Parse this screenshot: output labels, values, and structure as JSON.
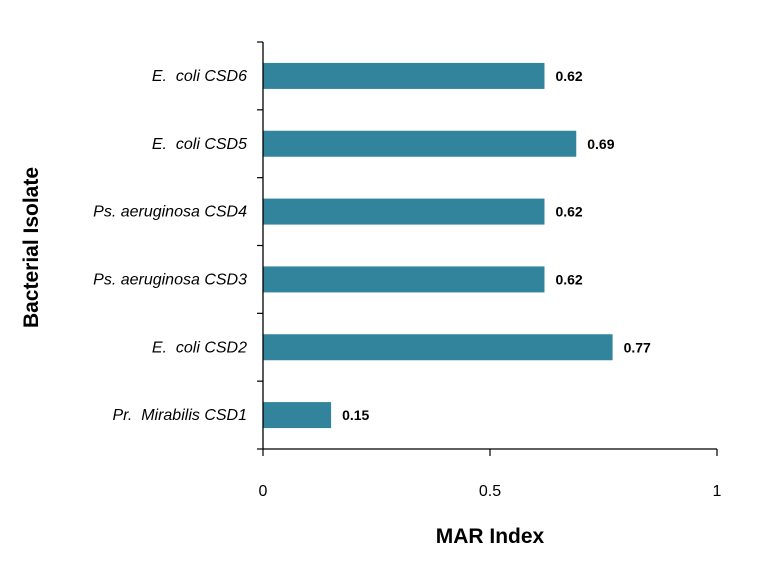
{
  "chart_data": {
    "type": "bar",
    "orientation": "horizontal",
    "categories": [
      "Pr.  Mirabilis CSD1",
      "E.  coli CSD2",
      "Ps. aeruginosa CSD3",
      "Ps. aeruginosa CSD4",
      "E.  coli CSD5",
      "E.  coli CSD6"
    ],
    "values": [
      0.15,
      0.77,
      0.62,
      0.62,
      0.69,
      0.62
    ],
    "value_labels": [
      "0.15",
      "0.77",
      "0.62",
      "0.62",
      "0.69",
      "0.62"
    ],
    "xlabel": "MAR Index",
    "ylabel": "Bacterial Isolate",
    "xlim": [
      0,
      1
    ],
    "xticks": [
      0,
      0.5,
      1
    ],
    "xtick_labels": [
      "0",
      "0.5",
      "1"
    ],
    "bar_color": "#31849b",
    "grid": false,
    "legend": "none"
  }
}
